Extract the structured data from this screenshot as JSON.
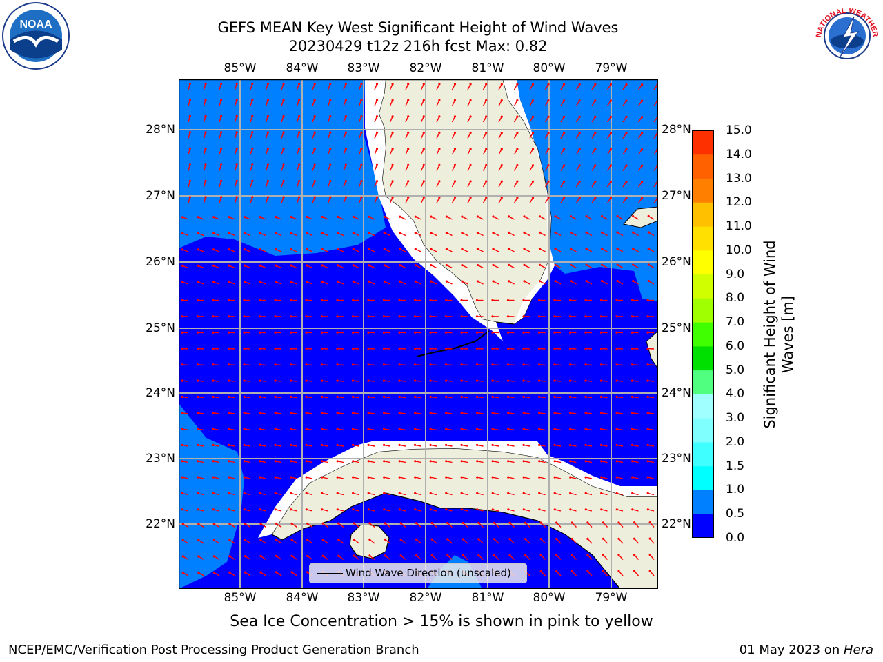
{
  "title": {
    "line1": "GEFS MEAN Key West Significant Height of Wind Waves",
    "line2": "20230429 t12z 216h fcst   Max: 0.82"
  },
  "axes": {
    "lon_labels": [
      "85°W",
      "84°W",
      "83°W",
      "82°W",
      "81°W",
      "80°W",
      "79°W"
    ],
    "lat_labels": [
      "28°N",
      "27°N",
      "26°N",
      "25°N",
      "24°N",
      "23°N",
      "22°N"
    ]
  },
  "colorbar": {
    "label": "Significant Height of Wind Waves [m]",
    "ticks": [
      "0.0",
      "0.5",
      "1.0",
      "1.5",
      "2.0",
      "3.0",
      "4.0",
      "5.0",
      "6.0",
      "7.0",
      "8.0",
      "9.0",
      "10.0",
      "11.0",
      "12.0",
      "13.0",
      "14.0",
      "15.0"
    ],
    "colors": [
      "#0000ff",
      "#0080ff",
      "#00ffff",
      "#40ffff",
      "#80ffff",
      "#a0ffff",
      "#50ff80",
      "#00e000",
      "#40ff00",
      "#a0ff00",
      "#d0ff00",
      "#ffff00",
      "#ffe000",
      "#ffc000",
      "#ff8000",
      "#ff6000",
      "#ff3000",
      "#ff0000"
    ]
  },
  "legend": {
    "label": "Wind Wave Direction (unscaled)"
  },
  "note": "Sea Ice Concentration > 15% is shown in pink to yellow",
  "footer": {
    "left": "NCEP/EMC/Verification Post Processing Product Generation Branch",
    "date": "01 May 2023 on ",
    "host": "Hera"
  },
  "logos": {
    "left": "NOAA",
    "right": "NATIONAL WEATHER SERVICE"
  },
  "map_colors": {
    "deep": "#0000ff",
    "mid": "#0080ff",
    "land": "#eeeedd",
    "arrow": "#ff0000",
    "grid": "#b0b0b0"
  }
}
